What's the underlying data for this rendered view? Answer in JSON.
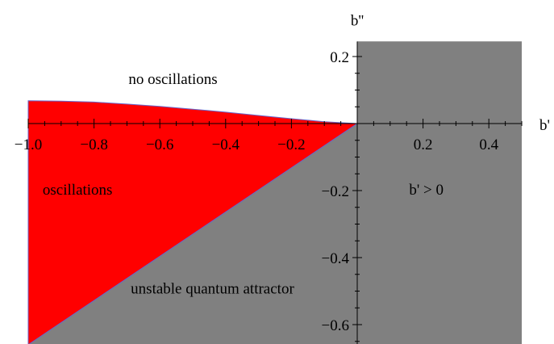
{
  "chart_data": {
    "type": "area",
    "xlabel": "b'",
    "ylabel": "b''",
    "xlim": [
      -1.0,
      0.5
    ],
    "ylim": [
      -0.66,
      0.245
    ],
    "x_ticks": [
      {
        "value": -1.0,
        "label": "−1.0"
      },
      {
        "value": -0.8,
        "label": "−0.8"
      },
      {
        "value": -0.6,
        "label": "−0.6"
      },
      {
        "value": -0.4,
        "label": "−0.4"
      },
      {
        "value": -0.2,
        "label": "−0.2"
      },
      {
        "value": 0.2,
        "label": "0.2"
      },
      {
        "value": 0.4,
        "label": "0.4"
      }
    ],
    "y_ticks": [
      {
        "value": 0.2,
        "label": "0.2"
      },
      {
        "value": -0.2,
        "label": "−0.2"
      },
      {
        "value": -0.4,
        "label": "−0.4"
      },
      {
        "value": -0.6,
        "label": "−0.6"
      }
    ],
    "regions": [
      {
        "label": "b' > 0",
        "color": "#808080",
        "points": [
          [
            0,
            -0.66
          ],
          [
            0.5,
            -0.66
          ],
          [
            0.5,
            0.245
          ],
          [
            0,
            0.245
          ]
        ]
      },
      {
        "label": "unstable quantum attractor",
        "color": "#808080",
        "points": [
          [
            -1.0,
            -0.66
          ],
          [
            0,
            0
          ],
          [
            0,
            -0.66
          ]
        ]
      },
      {
        "label": "oscillations",
        "color": "#ff0000",
        "boundary_color": "#6666cc",
        "points": [
          [
            -1.0,
            0.068
          ],
          [
            -0.9,
            0.067
          ],
          [
            -0.8,
            0.064
          ],
          [
            -0.7,
            0.058
          ],
          [
            -0.6,
            0.051
          ],
          [
            -0.5,
            0.043
          ],
          [
            -0.4,
            0.034
          ],
          [
            -0.3,
            0.024
          ],
          [
            -0.2,
            0.0145
          ],
          [
            -0.1,
            0.0055
          ],
          [
            0,
            0
          ],
          [
            -1.0,
            -0.66
          ]
        ]
      }
    ],
    "annotations": [
      {
        "text": "no oscillations",
        "x": -0.56,
        "y": 0.135
      },
      {
        "text": "oscillations",
        "x": -0.85,
        "y": -0.195
      },
      {
        "text": "unstable quantum attractor",
        "x": -0.44,
        "y": -0.49
      },
      {
        "text": "b' > 0",
        "x": 0.21,
        "y": -0.195
      }
    ]
  }
}
